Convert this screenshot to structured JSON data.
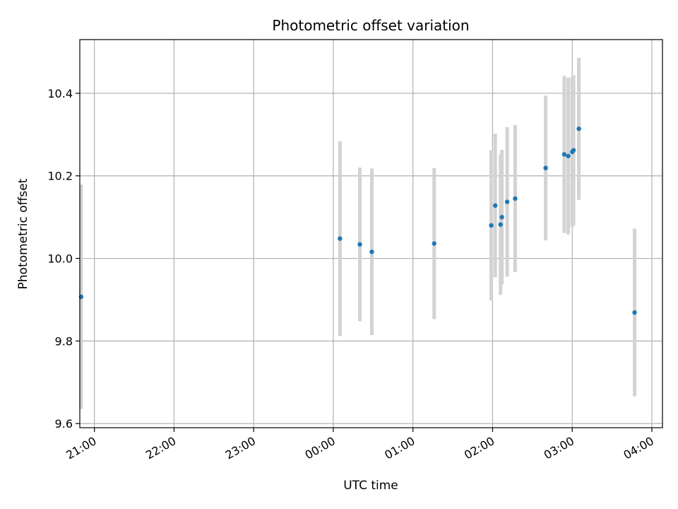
{
  "chart_data": {
    "type": "scatter",
    "title": "Photometric offset variation",
    "xlabel": "UTC time",
    "ylabel": "Photometric offset",
    "x_tick_labels": [
      "21:00",
      "22:00",
      "23:00",
      "00:00",
      "01:00",
      "02:00",
      "03:00",
      "04:00"
    ],
    "y_tick_labels": [
      "9.6",
      "9.8",
      "10.0",
      "10.2",
      "10.4"
    ],
    "y_ticks": [
      9.6,
      9.8,
      10.0,
      10.2,
      10.4
    ],
    "grid": true,
    "xlim": [
      "20:49",
      "04:08"
    ],
    "ylim": [
      9.59,
      10.53
    ],
    "colors": {
      "points": "#1f77b4",
      "errorbars": "#d3d3d3",
      "grid": "#b0b0b0"
    },
    "points": [
      {
        "time": "20:50",
        "value": 9.907,
        "err": 0.272
      },
      {
        "time": "00:05",
        "value": 10.048,
        "err": 0.236
      },
      {
        "time": "00:20",
        "value": 10.034,
        "err": 0.186
      },
      {
        "time": "00:29",
        "value": 10.016,
        "err": 0.202
      },
      {
        "time": "01:16",
        "value": 10.036,
        "err": 0.183
      },
      {
        "time": "01:59",
        "value": 10.08,
        "err": 0.182
      },
      {
        "time": "02:02",
        "value": 10.128,
        "err": 0.174
      },
      {
        "time": "02:06",
        "value": 10.082,
        "err": 0.17
      },
      {
        "time": "02:07",
        "value": 10.1,
        "err": 0.163
      },
      {
        "time": "02:11",
        "value": 10.137,
        "err": 0.181
      },
      {
        "time": "02:17",
        "value": 10.145,
        "err": 0.178
      },
      {
        "time": "02:40",
        "value": 10.219,
        "err": 0.175
      },
      {
        "time": "02:54",
        "value": 10.252,
        "err": 0.19
      },
      {
        "time": "02:57",
        "value": 10.248,
        "err": 0.19
      },
      {
        "time": "03:00",
        "value": 10.258,
        "err": 0.182
      },
      {
        "time": "03:01",
        "value": 10.262,
        "err": 0.182
      },
      {
        "time": "03:05",
        "value": 10.314,
        "err": 0.172
      },
      {
        "time": "03:47",
        "value": 9.869,
        "err": 0.203
      }
    ]
  }
}
